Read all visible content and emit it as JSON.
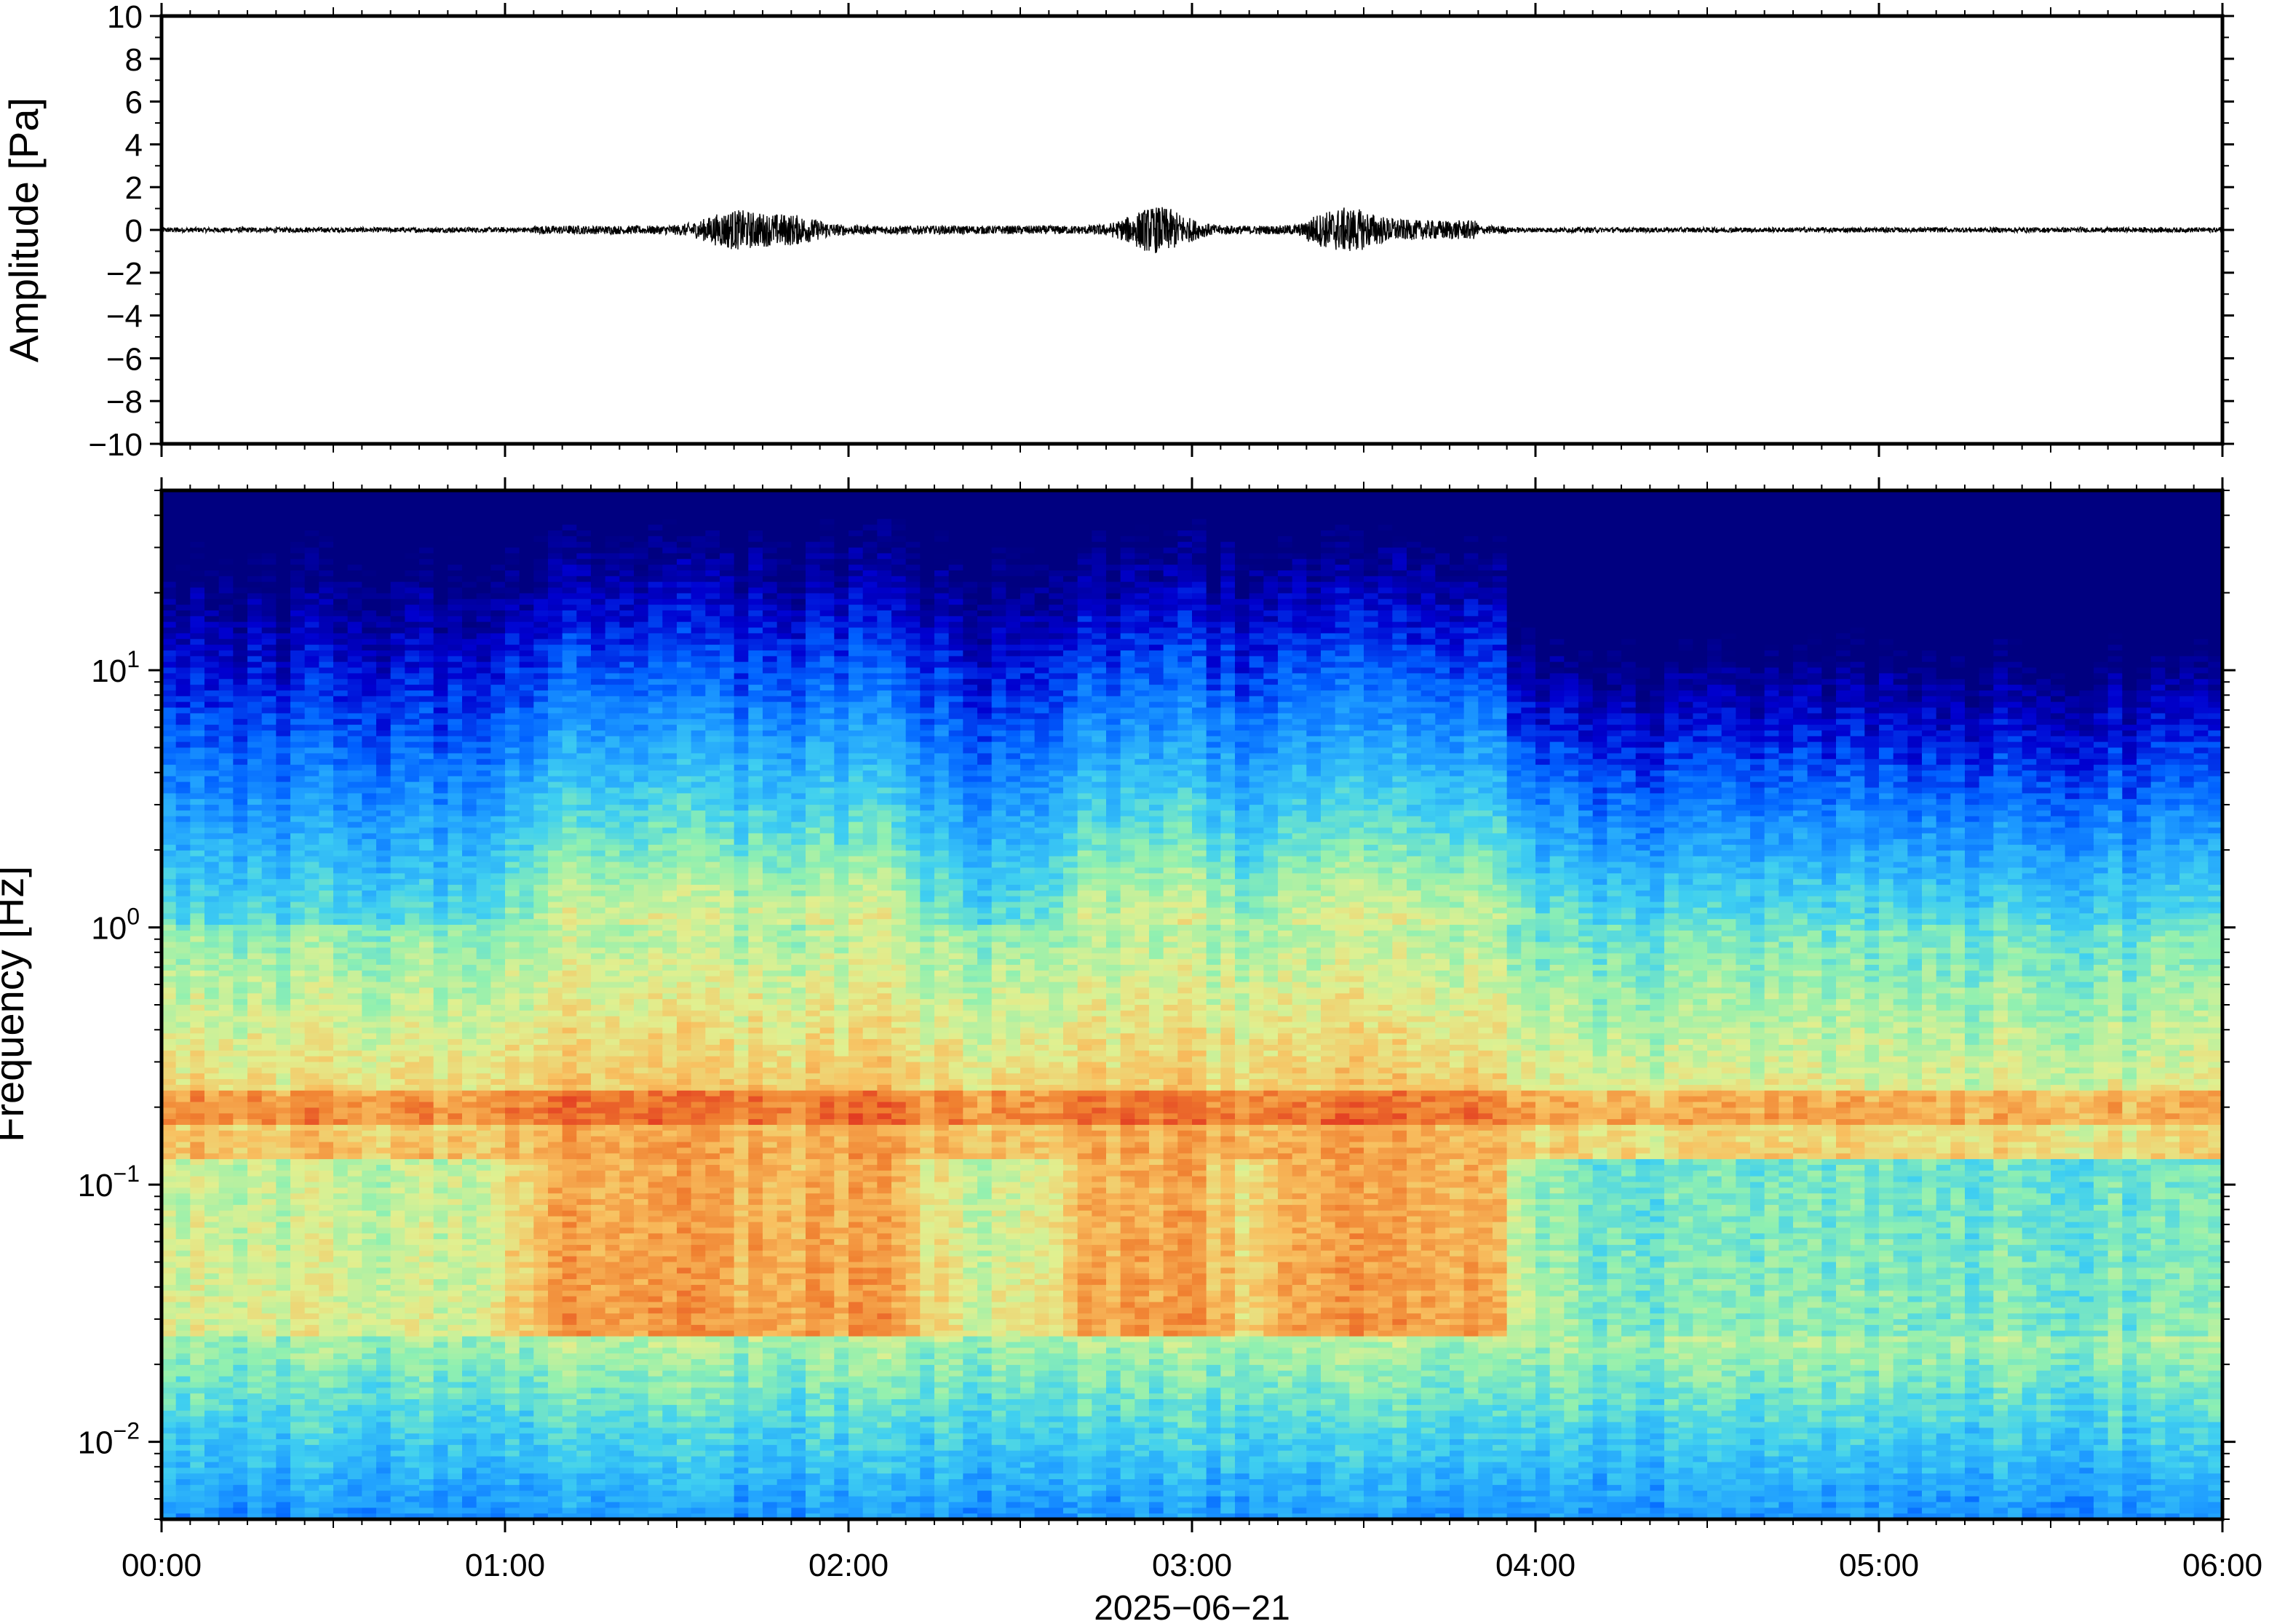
{
  "chart_data": [
    {
      "type": "line",
      "panel": "waveform",
      "ylabel": "Amplitude [Pa]",
      "ylim": [
        -10,
        10
      ],
      "yticks": [
        10,
        8,
        6,
        4,
        2,
        0,
        -2,
        -4,
        -6,
        -8,
        -10
      ],
      "ytick_labels": [
        "10",
        "8",
        "6",
        "4",
        "2",
        "0",
        "−2",
        "−4",
        "−6",
        "−8",
        "−10"
      ],
      "xlim": [
        "00:00",
        "06:00"
      ],
      "baseline": 0,
      "bursts": [
        {
          "t_min": 100,
          "peak_pa": 0.7
        },
        {
          "t_min": 110,
          "peak_pa": 0.5
        },
        {
          "t_min": 174,
          "peak_pa": 0.9
        },
        {
          "t_min": 207,
          "peak_pa": 0.6
        }
      ],
      "line_color": "#000000"
    },
    {
      "type": "heatmap",
      "panel": "spectrogram",
      "ylabel": "Frequency [Hz]",
      "yscale": "log",
      "ylim": [
        0.005,
        50
      ],
      "yticks": [
        0.01,
        0.1,
        1,
        10
      ],
      "ytick_labels": [
        {
          "base": "10",
          "exp": "−2"
        },
        {
          "base": "10",
          "exp": "−1"
        },
        {
          "base": "10",
          "exp": "0"
        },
        {
          "base": "10",
          "exp": "1"
        }
      ],
      "x_label": "2025−06−21",
      "x_tick_labels": [
        "00:00",
        "01:00",
        "02:00",
        "03:00",
        "04:00",
        "05:00",
        "06:00"
      ],
      "colormap": [
        "#000080",
        "#0000d0",
        "#0060ff",
        "#20a0ff",
        "#40d0f0",
        "#90f0b0",
        "#e0f090",
        "#f8c060",
        "#f08030",
        "#e03020"
      ],
      "features": {
        "microbarom_band_hz": 0.2,
        "active_intervals_min": [
          [
            70,
            100
          ],
          [
            105,
            125
          ],
          [
            165,
            180
          ],
          [
            200,
            230
          ]
        ],
        "quiet_after_min": 235
      }
    }
  ]
}
